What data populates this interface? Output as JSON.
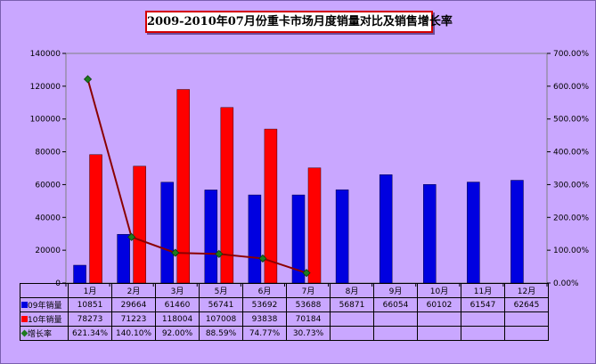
{
  "chart_data": {
    "type": "bar",
    "title": "2009-2010年07月份重卡市场月度销量对比及销售增长率",
    "categories": [
      "1月",
      "2月",
      "3月",
      "5月",
      "6月",
      "7月",
      "8月",
      "9月",
      "10月",
      "11月",
      "12月"
    ],
    "series": [
      {
        "name": "09年销量",
        "type": "bar",
        "axis": "left",
        "color": "#0000e0",
        "values": [
          10851,
          29664,
          61460,
          56741,
          53692,
          53688,
          56871,
          66054,
          60102,
          61547,
          62645
        ],
        "labels": [
          "10851",
          "29664",
          "61460",
          "56741",
          "53692",
          "53688",
          "56871",
          "66054",
          "60102",
          "61547",
          "62645"
        ]
      },
      {
        "name": "10年销量",
        "type": "bar",
        "axis": "left",
        "color": "#ff0000",
        "values": [
          78273,
          71223,
          118004,
          107008,
          93838,
          70184,
          null,
          null,
          null,
          null,
          null
        ],
        "labels": [
          "78273",
          "71223",
          "118004",
          "107008",
          "93838",
          "70184",
          "",
          "",
          "",
          "",
          ""
        ]
      },
      {
        "name": "增长率",
        "type": "line",
        "axis": "right",
        "color": "#8b0000",
        "marker_color": "#1f7a1f",
        "values": [
          621.34,
          140.1,
          92.0,
          88.59,
          74.77,
          30.73,
          null,
          null,
          null,
          null,
          null
        ],
        "labels": [
          "621.34%",
          "140.10%",
          "92.00%",
          "88.59%",
          "74.77%",
          "30.73%",
          "",
          "",
          "",
          "",
          ""
        ]
      }
    ],
    "y_left": {
      "min": 0,
      "max": 140000,
      "step": 20000,
      "ticks": [
        "0",
        "20000",
        "40000",
        "60000",
        "80000",
        "100000",
        "120000",
        "140000"
      ]
    },
    "y_right": {
      "min": 0,
      "max": 700,
      "step": 100,
      "ticks": [
        "0.00%",
        "100.00%",
        "200.00%",
        "300.00%",
        "400.00%",
        "500.00%",
        "600.00%",
        "700.00%"
      ]
    },
    "grid": false,
    "legend": "data-table"
  },
  "colors": {
    "background": "#c9a7ff",
    "plot_border": "#808080",
    "bar_2009": "#0000e0",
    "bar_2010": "#ff0000",
    "line": "#8b0000",
    "marker": "#1f7a1f"
  }
}
